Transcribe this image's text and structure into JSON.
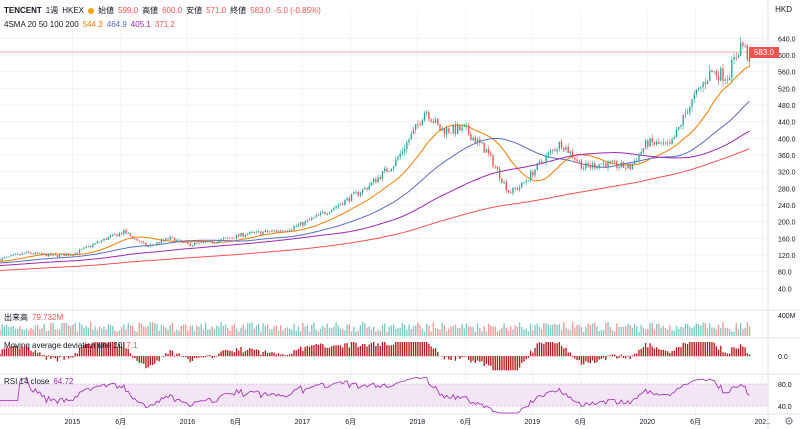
{
  "header": {
    "symbol": "TENCENT",
    "interval": "1週",
    "exchange": "HKEX",
    "open_label": "始値",
    "open_value": "599.0",
    "high_label": "高値",
    "high_value": "600.0",
    "low_label": "安値",
    "low_value": "571.0",
    "close_label": "終値",
    "close_value": "583.0",
    "change": "-5.0 (-0.85%)",
    "currency": "HKD"
  },
  "ma_legend": {
    "label": "4SMA 20 50 100 200",
    "values": [
      "544.3",
      "464.9",
      "405.1",
      "371.2"
    ]
  },
  "volume_legend": {
    "label": "出来高",
    "value": "79.732M"
  },
  "deviation_legend": {
    "label": "Moving average deviation rate 20",
    "value": "7.1"
  },
  "rsi_legend": {
    "label": "RSI 14 close",
    "value": "64.72"
  },
  "price_badge": "583.0",
  "colors": {
    "up": "#26a69a",
    "down": "#ef5350",
    "sma20": "#f57c00",
    "sma50": "#5c6bc0",
    "sma100": "#9c27b0",
    "sma200": "#ef5350",
    "rsi": "#9c27b0",
    "rsi_band": "#f3e5f5",
    "deviation": "#b71c1c"
  },
  "chart_data": {
    "type": "candlestick",
    "title": "",
    "y_ticks": [
      "640.0",
      "600.0",
      "560.0",
      "520.0",
      "480.0",
      "440.0",
      "400.0",
      "360.0",
      "320.0",
      "280.0",
      "240.0",
      "200.0",
      "160.0",
      "120.0",
      "80.0",
      "40.0"
    ],
    "ylim": [
      0,
      660
    ],
    "x_ticks": [
      "2015",
      "6月",
      "2016",
      "6月",
      "2017",
      "6月",
      "2018",
      "6月",
      "2019",
      "6月",
      "2020",
      "6月",
      "2021"
    ],
    "x_ticks_time": [
      2015.0,
      2015.42,
      2016.0,
      2016.42,
      2017.0,
      2017.42,
      2018.0,
      2018.42,
      2019.0,
      2019.42,
      2020.0,
      2020.42,
      2021.0
    ],
    "xlim": [
      2014.37,
      2021.05
    ],
    "price_anchors": [
      [
        2014.37,
        110
      ],
      [
        2014.6,
        125
      ],
      [
        2014.85,
        118
      ],
      [
        2015.0,
        122
      ],
      [
        2015.3,
        160
      ],
      [
        2015.45,
        175
      ],
      [
        2015.65,
        140
      ],
      [
        2015.85,
        160
      ],
      [
        2016.0,
        145
      ],
      [
        2016.2,
        150
      ],
      [
        2016.5,
        170
      ],
      [
        2016.85,
        180
      ],
      [
        2017.0,
        195
      ],
      [
        2017.25,
        230
      ],
      [
        2017.55,
        280
      ],
      [
        2017.8,
        340
      ],
      [
        2018.0,
        430
      ],
      [
        2018.07,
        470
      ],
      [
        2018.2,
        420
      ],
      [
        2018.42,
        420
      ],
      [
        2018.6,
        370
      ],
      [
        2018.8,
        270
      ],
      [
        2018.9,
        285
      ],
      [
        2019.1,
        350
      ],
      [
        2019.25,
        390
      ],
      [
        2019.45,
        330
      ],
      [
        2019.6,
        340
      ],
      [
        2019.85,
        330
      ],
      [
        2020.0,
        390
      ],
      [
        2020.2,
        380
      ],
      [
        2020.35,
        470
      ],
      [
        2020.55,
        560
      ],
      [
        2020.7,
        550
      ],
      [
        2020.82,
        630
      ],
      [
        2020.9,
        583
      ]
    ],
    "sma_levels": [
      "544.3",
      "464.9",
      "405.1",
      "371.2"
    ],
    "volume_axis": [
      "400M"
    ],
    "deviation_axis": [
      "0.0"
    ],
    "rsi_axis": [
      "80.0",
      "40.0"
    ]
  }
}
